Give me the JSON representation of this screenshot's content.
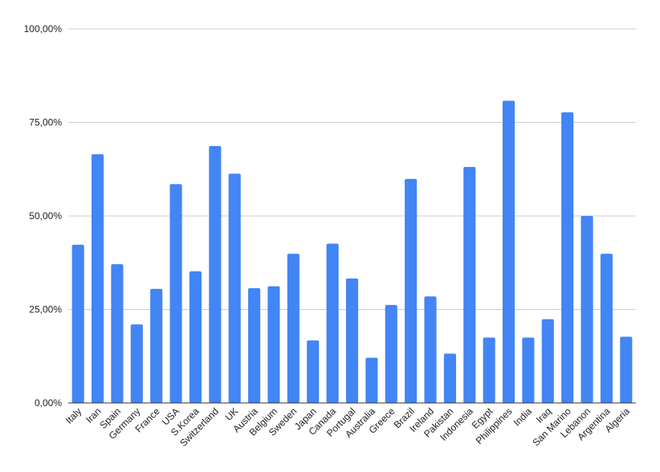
{
  "chart_data": {
    "type": "bar",
    "title": "",
    "xlabel": "",
    "ylabel": "",
    "ylim": [
      0,
      100
    ],
    "yticks": [
      "0,00%",
      "25,00%",
      "50,00%",
      "75,00%",
      "100,00%"
    ],
    "grid": true,
    "bar_color": "#4285F4",
    "categories": [
      "Italy",
      "Iran",
      "Spain",
      "Germany",
      "France",
      "USA",
      "S.Korea",
      "Switzerland",
      "UK",
      "Austria",
      "Belgium",
      "Sweden",
      "Japan",
      "Canada",
      "Portugal",
      "Australia",
      "Greece",
      "Brazil",
      "Ireland",
      "Pakistan",
      "Indonesia",
      "Egypt",
      "Philippines",
      "India",
      "Iraq",
      "San Marino",
      "Lebanon",
      "Argentina",
      "Algeria"
    ],
    "values": [
      42.3,
      66.5,
      37.1,
      21.0,
      30.5,
      58.5,
      35.2,
      68.7,
      61.3,
      30.7,
      31.2,
      39.9,
      16.7,
      42.6,
      33.3,
      12.1,
      26.2,
      59.9,
      28.5,
      13.2,
      63.1,
      17.5,
      80.8,
      17.5,
      22.4,
      77.7,
      50.0,
      39.9,
      17.7
    ]
  }
}
